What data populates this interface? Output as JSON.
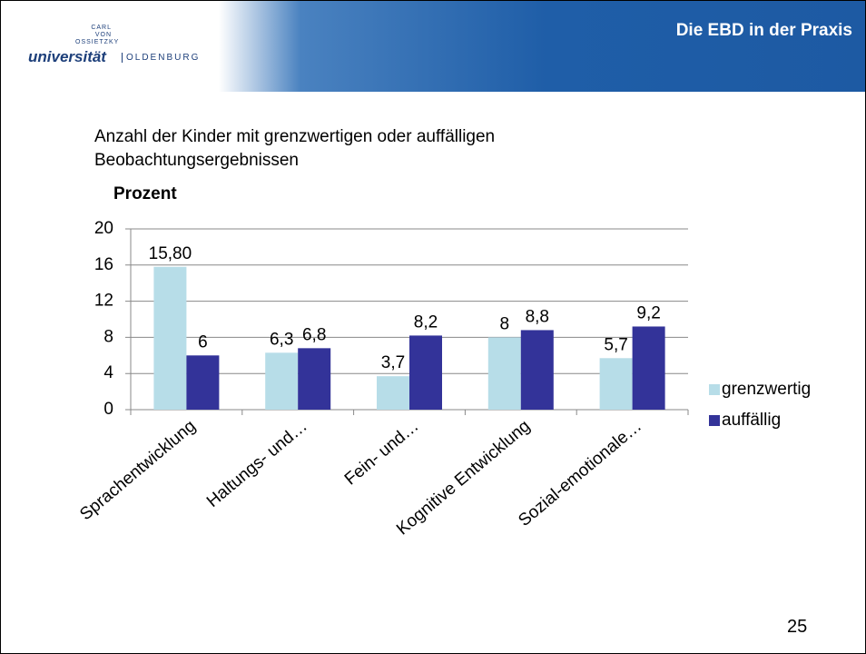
{
  "header": {
    "logo_top": "CARL VON OSSIETZKY",
    "logo_main": "universität",
    "logo_city": "OLDENBURG",
    "title": "Die  EBD in der Praxis"
  },
  "slide_number": "25",
  "chart_data": {
    "type": "bar",
    "title": "Anzahl der Kinder mit grenzwertigen oder auffälligen Beobachtungsergebnissen",
    "y_label": "Prozent",
    "categories": [
      "Sprachentwicklung",
      "Haltungs- und…",
      "Fein- und…",
      "Kognitive Entwicklung",
      "Sozial-emotionale…"
    ],
    "series": [
      {
        "name": "grenzwertig",
        "color": "#b7dde8",
        "values": [
          15.8,
          6.3,
          3.7,
          8,
          5.7
        ],
        "value_labels": [
          "15,80",
          "6,3",
          "3,7",
          "8",
          "5,7"
        ]
      },
      {
        "name": "auffällig",
        "color": "#333399",
        "values": [
          6,
          6.8,
          8.2,
          8.8,
          9.2
        ],
        "value_labels": [
          "6",
          "6,8",
          "8,2",
          "8,8",
          "9,2"
        ]
      }
    ],
    "ylim": [
      0,
      20
    ],
    "yticks": [
      0,
      4,
      8,
      12,
      16,
      20
    ],
    "grid": true,
    "legend": "right"
  }
}
